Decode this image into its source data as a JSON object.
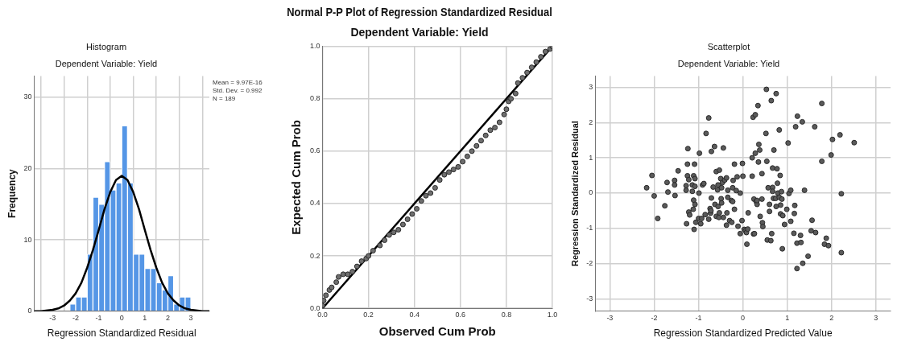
{
  "chart_data": [
    {
      "type": "histogram",
      "title": "Histogram",
      "subtitle": "Dependent Variable: Yield",
      "xlabel": "Regression Standardized Residual",
      "ylabel": "Frequency",
      "bins": [
        -2.25,
        -2,
        -1.75,
        -1.5,
        -1.25,
        -1,
        -0.75,
        -0.5,
        -0.25,
        0,
        0.25,
        0.5,
        0.75,
        1,
        1.25,
        1.5,
        1.75,
        2,
        2.25,
        2.5,
        2.75,
        3
      ],
      "values": [
        1,
        2,
        2,
        8,
        16,
        15,
        21,
        17,
        18,
        26,
        18,
        8,
        8,
        6,
        6,
        4,
        3,
        5,
        1,
        2,
        2
      ],
      "color": "#5596e6",
      "series": [
        {
          "type": "line",
          "marker": "none",
          "color": "#000000",
          "x": [
            -3.8,
            -3.5,
            -3,
            -2.75,
            -2.5,
            -2.25,
            -2,
            -1.75,
            -1.5,
            -1.25,
            -1,
            -0.75,
            -0.5,
            -0.25,
            0,
            0.25,
            0.5,
            0.75,
            1,
            1.25,
            1.5,
            1.75,
            2,
            2.25,
            2.5,
            2.75,
            3,
            3.5,
            3.8
          ],
          "values": [
            0,
            0,
            0.2,
            0.4,
            0.8,
            1.5,
            2.5,
            4.0,
            6.1,
            8.6,
            11.4,
            14.3,
            16.7,
            18.4,
            19.0,
            18.4,
            16.7,
            14.3,
            11.4,
            8.6,
            6.1,
            4.0,
            2.5,
            1.5,
            0.8,
            0.4,
            0.2,
            0,
            0
          ]
        }
      ],
      "xlim": [
        -3.8,
        3.8
      ],
      "ylim": [
        0,
        33
      ],
      "xticks": [
        -3,
        -2,
        -1,
        0,
        1,
        2,
        3
      ],
      "yticks": [
        0,
        10,
        20,
        30
      ],
      "grid": true,
      "annotations": [
        "Mean = 9.97E-16",
        "Std. Dev. = 0.992",
        "N = 189"
      ]
    },
    {
      "type": "scatter",
      "title": "Normal P-P Plot of Regression Standardized Residual",
      "subtitle": "Dependent Variable: Yield",
      "xlabel": "Observed Cum Prob",
      "ylabel": "Expected Cum Prob",
      "series": [
        {
          "type": "scatter",
          "marker": "circle",
          "color": "#6e6e6e",
          "x": [
            0,
            0.005,
            0.015,
            0.03,
            0.04,
            0.06,
            0.07,
            0.09,
            0.11,
            0.13,
            0.15,
            0.17,
            0.19,
            0.2,
            0.22,
            0.25,
            0.27,
            0.29,
            0.31,
            0.33,
            0.35,
            0.37,
            0.39,
            0.41,
            0.43,
            0.45,
            0.47,
            0.49,
            0.51,
            0.53,
            0.55,
            0.57,
            0.59,
            0.61,
            0.63,
            0.65,
            0.67,
            0.69,
            0.71,
            0.73,
            0.75,
            0.77,
            0.79,
            0.8,
            0.81,
            0.82,
            0.84,
            0.85,
            0.87,
            0.89,
            0.91,
            0.93,
            0.95,
            0.97,
            0.99,
            1
          ],
          "values": [
            0.01,
            0.03,
            0.05,
            0.07,
            0.08,
            0.1,
            0.12,
            0.13,
            0.13,
            0.14,
            0.16,
            0.18,
            0.19,
            0.2,
            0.22,
            0.24,
            0.26,
            0.28,
            0.29,
            0.3,
            0.32,
            0.34,
            0.36,
            0.38,
            0.41,
            0.43,
            0.44,
            0.46,
            0.49,
            0.51,
            0.52,
            0.53,
            0.54,
            0.56,
            0.58,
            0.6,
            0.62,
            0.64,
            0.66,
            0.68,
            0.69,
            0.71,
            0.74,
            0.76,
            0.79,
            0.8,
            0.82,
            0.86,
            0.88,
            0.9,
            0.92,
            0.94,
            0.96,
            0.98,
            0.99,
            1
          ]
        },
        {
          "type": "line",
          "marker": "none",
          "color": "#000000",
          "x": [
            0,
            1
          ],
          "values": [
            0,
            1
          ]
        }
      ],
      "xlim": [
        0,
        1
      ],
      "ylim": [
        0,
        1
      ],
      "xticks": [
        {
          "value": 0,
          "label": "0.0"
        },
        0.2,
        0.4,
        0.6,
        0.8,
        {
          "value": 1,
          "label": "1.0"
        }
      ],
      "yticks": [
        {
          "value": 0,
          "label": "0.0"
        },
        0.2,
        0.4,
        0.6,
        0.8,
        {
          "value": 1,
          "label": "1.0"
        }
      ],
      "grid": true
    },
    {
      "type": "scatter",
      "title": "Scatterplot",
      "subtitle": "Dependent Variable: Yield",
      "xlabel": "Regression Standardized Predicted Value",
      "ylabel": "Regression Standardized Residual",
      "color": "#5a5a5a",
      "marker": "circle",
      "x": [
        -2.17,
        -2.05,
        -2.0,
        -1.92,
        -1.76,
        -1.71,
        -1.69,
        -1.54,
        -1.54,
        -1.53,
        -1.46,
        -1.27,
        -1.28,
        -1.28,
        -1.25,
        -1.25,
        -1.24,
        -1.22,
        -1.22,
        -1.2,
        -1.14,
        -1.14,
        -1.12,
        -1.11,
        -1.11,
        -1.1,
        -1.09,
        -1.08,
        -1.08,
        -1.08,
        -1.06,
        -1.0,
        -0.99,
        -0.98,
        -0.95,
        -0.93,
        -0.91,
        -0.88,
        -0.85,
        -0.83,
        -0.77,
        -0.77,
        -0.74,
        -0.73,
        -0.72,
        -0.71,
        -0.71,
        -0.67,
        -0.64,
        -0.63,
        -0.6,
        -0.6,
        -0.57,
        -0.56,
        -0.56,
        -0.54,
        -0.53,
        -0.53,
        -0.5,
        -0.49,
        -0.48,
        -0.48,
        -0.46,
        -0.44,
        -0.44,
        -0.41,
        -0.37,
        -0.37,
        -0.36,
        -0.34,
        -0.34,
        -0.3,
        -0.26,
        -0.25,
        -0.23,
        -0.23,
        -0.22,
        -0.19,
        -0.19,
        -0.15,
        -0.13,
        -0.11,
        -0.06,
        -0.06,
        -0.02,
        -0.01,
        0.0,
        0.03,
        0.06,
        0.08,
        0.09,
        0.11,
        0.12,
        0.21,
        0.21,
        0.23,
        0.24,
        0.25,
        0.26,
        0.28,
        0.28,
        0.3,
        0.32,
        0.32,
        0.34,
        0.35,
        0.36,
        0.38,
        0.39,
        0.43,
        0.43,
        0.44,
        0.45,
        0.52,
        0.53,
        0.54,
        0.55,
        0.57,
        0.6,
        0.6,
        0.63,
        0.64,
        0.65,
        0.67,
        0.67,
        0.67,
        0.69,
        0.7,
        0.74,
        0.75,
        0.75,
        0.77,
        0.78,
        0.79,
        0.82,
        0.82,
        0.84,
        0.85,
        0.85,
        0.87,
        0.88,
        0.89,
        0.9,
        0.94,
        0.99,
        1.02,
        1.04,
        1.08,
        1.08,
        1.15,
        1.16,
        1.17,
        1.19,
        1.22,
        1.22,
        1.23,
        1.3,
        1.31,
        1.34,
        1.35,
        1.39,
        1.47,
        1.54,
        1.56,
        1.62,
        1.64,
        1.78,
        1.78,
        1.84,
        1.88,
        1.93,
        1.99,
        2.02,
        2.19,
        2.22,
        2.22,
        2.51
      ],
      "values": [
        0.15,
        0.5,
        -0.08,
        -0.72,
        -0.36,
        0.3,
        0.03,
        0.36,
        0.23,
        -0.07,
        0.63,
        -0.87,
        0.21,
        0.08,
        0.82,
        0.49,
        1.26,
        0.38,
        -0.54,
        -0.62,
        0.23,
        0.05,
        -0.46,
        0.49,
        -0.2,
        -1.03,
        0.82,
        0.41,
        -0.32,
        0.19,
        -0.83,
        -0.72,
        0.0,
        1.13,
        -0.87,
        -0.72,
        0.23,
        0.27,
        -0.61,
        1.69,
        2.13,
        -0.74,
        -0.44,
        -0.57,
        -0.5,
        -0.14,
        1.18,
        0.17,
        1.32,
        -0.32,
        0.61,
        -0.66,
        0.09,
        0.23,
        -0.38,
        -0.69,
        0.65,
        -0.56,
        0.41,
        -0.16,
        0.15,
        -0.28,
        0.3,
        1.28,
        -0.69,
        0.37,
        0.43,
        -0.91,
        -0.56,
        0.08,
        -0.12,
        -0.78,
        -0.21,
        -0.83,
        -0.24,
        0.15,
        0.36,
        0.82,
        -0.46,
        0.07,
        0.46,
        -0.94,
        0.0,
        -1.15,
        -0.78,
        0.84,
        0.48,
        -1.03,
        -1.07,
        -1.12,
        -1.45,
        -1.02,
        -0.56,
        1.0,
        0.48,
        2.15,
        -1.16,
        -0.17,
        -1.15,
        2.22,
        1.13,
        -0.24,
        -0.32,
        -0.21,
        2.48,
        0.88,
        1.38,
        1.22,
        -0.66,
        -0.17,
        0.55,
        -0.84,
        -0.95,
        1.69,
        2.94,
        0.9,
        -1.33,
        0.15,
        -0.52,
        -0.32,
        -1.35,
        2.62,
        -1.15,
        0.71,
        0.16,
        0.05,
        -0.15,
        1.22,
        -0.15,
        2.82,
        -0.38,
        0.69,
        0.28,
        0.0,
        -0.12,
        1.79,
        0.5,
        -0.34,
        -0.59,
        0.04,
        -0.17,
        -1.58,
        -0.64,
        -0.89,
        -0.46,
        1.42,
        -0.01,
        0.08,
        -0.8,
        -1.14,
        -0.58,
        -0.35,
        1.88,
        -1.42,
        -2.14,
        2.18,
        -1.2,
        -1.4,
        2.02,
        -1.99,
        0.08,
        -1.79,
        -1.07,
        -0.77,
        1.88,
        -1.12,
        2.54,
        0.9,
        -1.45,
        -1.28,
        -1.49,
        1.08,
        1.52,
        1.65,
        -0.02,
        -1.69,
        1.43
      ],
      "xlim": [
        -3.33,
        3.33
      ],
      "ylim": [
        -3.35,
        3.32
      ],
      "xticks": [
        -3,
        -2,
        -1,
        0,
        1,
        2,
        3
      ],
      "yticks": [
        -3,
        -2,
        -1,
        0,
        1,
        2,
        3
      ],
      "grid": true
    }
  ]
}
